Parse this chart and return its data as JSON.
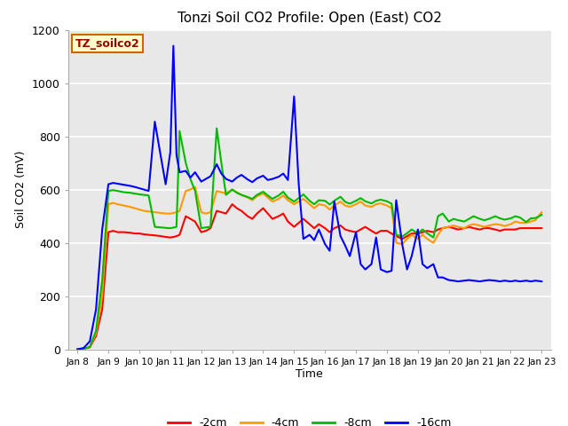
{
  "title": "Tonzi Soil CO2 Profile: Open (East) CO2",
  "xlabel": "Time",
  "ylabel": "Soil CO2 (mV)",
  "ylim": [
    0,
    1200
  ],
  "fig_bg": "#ffffff",
  "plot_bg": "#e8e8e8",
  "label_box_text": "TZ_soilco2",
  "label_box_color": "#ffffcc",
  "label_box_edge": "#cc6600",
  "label_box_text_color": "#990000",
  "x_labels": [
    "Jan 8",
    "Jan 9",
    "Jan 10",
    "Jan 11",
    "Jan 12",
    "Jan 13",
    "Jan 14",
    "Jan 15",
    "Jan 16",
    "Jan 17",
    "Jan 18",
    "Jan 19",
    "Jan 20",
    "Jan 21",
    "Jan 22",
    "Jan 23"
  ],
  "x_ticks": [
    0,
    1,
    2,
    3,
    4,
    5,
    6,
    7,
    8,
    9,
    10,
    11,
    12,
    13,
    14,
    15
  ],
  "series": {
    "-2cm": {
      "color": "#ff0000",
      "x": [
        0,
        0.2,
        0.4,
        0.6,
        0.8,
        1.0,
        1.15,
        1.3,
        1.5,
        1.7,
        1.85,
        2.0,
        2.15,
        2.3,
        2.5,
        2.7,
        2.85,
        3.0,
        3.1,
        3.2,
        3.3,
        3.5,
        3.65,
        3.8,
        4.0,
        4.15,
        4.3,
        4.5,
        4.65,
        4.8,
        5.0,
        5.15,
        5.3,
        5.5,
        5.65,
        5.8,
        6.0,
        6.15,
        6.3,
        6.5,
        6.65,
        6.8,
        7.0,
        7.15,
        7.3,
        7.5,
        7.65,
        7.8,
        8.0,
        8.15,
        8.3,
        8.5,
        8.65,
        8.8,
        9.0,
        9.15,
        9.3,
        9.5,
        9.65,
        9.8,
        10.0,
        10.15,
        10.3,
        10.5,
        10.65,
        10.8,
        11.0,
        11.15,
        11.3,
        11.5,
        11.65,
        11.8,
        12.0,
        12.15,
        12.3,
        12.5,
        12.65,
        12.8,
        13.0,
        13.15,
        13.3,
        13.5,
        13.65,
        13.8,
        14.0,
        14.15,
        14.3,
        14.5,
        14.65,
        14.8,
        15.0
      ],
      "y": [
        0,
        2,
        8,
        50,
        150,
        440,
        445,
        440,
        440,
        438,
        435,
        435,
        432,
        430,
        428,
        425,
        422,
        420,
        422,
        425,
        430,
        500,
        490,
        480,
        440,
        445,
        455,
        520,
        515,
        510,
        545,
        530,
        520,
        500,
        490,
        510,
        530,
        510,
        490,
        500,
        510,
        480,
        460,
        475,
        490,
        470,
        455,
        470,
        455,
        440,
        455,
        465,
        450,
        445,
        440,
        450,
        460,
        445,
        435,
        445,
        445,
        435,
        425,
        415,
        425,
        435,
        435,
        440,
        445,
        440,
        450,
        455,
        460,
        455,
        450,
        455,
        460,
        455,
        450,
        455,
        455,
        450,
        445,
        450,
        450,
        450,
        455,
        455,
        455,
        455,
        455
      ]
    },
    "-4cm": {
      "color": "#ff9900",
      "x": [
        0,
        0.2,
        0.4,
        0.6,
        0.8,
        1.0,
        1.15,
        1.3,
        1.5,
        1.7,
        1.85,
        2.0,
        2.15,
        2.3,
        2.5,
        2.7,
        2.85,
        3.0,
        3.1,
        3.2,
        3.3,
        3.5,
        3.65,
        3.8,
        4.0,
        4.15,
        4.3,
        4.5,
        4.65,
        4.8,
        5.0,
        5.15,
        5.3,
        5.5,
        5.65,
        5.8,
        6.0,
        6.15,
        6.3,
        6.5,
        6.65,
        6.8,
        7.0,
        7.15,
        7.3,
        7.5,
        7.65,
        7.8,
        8.0,
        8.15,
        8.3,
        8.5,
        8.65,
        8.8,
        9.0,
        9.15,
        9.3,
        9.5,
        9.65,
        9.8,
        10.0,
        10.15,
        10.3,
        10.5,
        10.65,
        10.8,
        11.0,
        11.15,
        11.3,
        11.5,
        11.65,
        11.8,
        12.0,
        12.15,
        12.3,
        12.5,
        12.65,
        12.8,
        13.0,
        13.15,
        13.3,
        13.5,
        13.65,
        13.8,
        14.0,
        14.15,
        14.3,
        14.5,
        14.65,
        14.8,
        15.0
      ],
      "y": [
        0,
        2,
        8,
        60,
        200,
        545,
        550,
        545,
        540,
        535,
        530,
        525,
        520,
        518,
        515,
        512,
        510,
        510,
        512,
        515,
        520,
        595,
        600,
        610,
        515,
        510,
        515,
        595,
        590,
        585,
        600,
        590,
        580,
        570,
        560,
        575,
        585,
        570,
        555,
        565,
        578,
        560,
        545,
        555,
        565,
        545,
        530,
        545,
        540,
        525,
        540,
        555,
        540,
        535,
        545,
        555,
        540,
        535,
        545,
        548,
        540,
        530,
        400,
        395,
        415,
        430,
        415,
        430,
        415,
        400,
        430,
        455,
        460,
        465,
        460,
        455,
        465,
        470,
        465,
        460,
        465,
        470,
        468,
        463,
        470,
        480,
        475,
        475,
        480,
        485,
        515
      ]
    },
    "-8cm": {
      "color": "#00bb00",
      "x": [
        0,
        0.2,
        0.4,
        0.6,
        0.8,
        1.0,
        1.15,
        1.3,
        1.5,
        1.7,
        1.85,
        2.0,
        2.15,
        2.3,
        2.5,
        2.7,
        2.85,
        3.0,
        3.1,
        3.2,
        3.3,
        3.5,
        3.65,
        3.8,
        4.0,
        4.15,
        4.3,
        4.5,
        4.65,
        4.8,
        5.0,
        5.15,
        5.3,
        5.5,
        5.65,
        5.8,
        6.0,
        6.15,
        6.3,
        6.5,
        6.65,
        6.8,
        7.0,
        7.15,
        7.3,
        7.5,
        7.65,
        7.8,
        8.0,
        8.15,
        8.3,
        8.5,
        8.65,
        8.8,
        9.0,
        9.15,
        9.3,
        9.5,
        9.65,
        9.8,
        10.0,
        10.15,
        10.3,
        10.5,
        10.65,
        10.8,
        11.0,
        11.15,
        11.3,
        11.5,
        11.65,
        11.8,
        12.0,
        12.15,
        12.3,
        12.5,
        12.65,
        12.8,
        13.0,
        13.15,
        13.3,
        13.5,
        13.65,
        13.8,
        14.0,
        14.15,
        14.3,
        14.5,
        14.65,
        14.8,
        15.0
      ],
      "y": [
        0,
        2,
        8,
        70,
        260,
        595,
        598,
        595,
        590,
        588,
        585,
        582,
        580,
        578,
        460,
        458,
        456,
        455,
        457,
        460,
        820,
        700,
        640,
        595,
        455,
        458,
        460,
        830,
        700,
        580,
        600,
        588,
        580,
        572,
        565,
        580,
        592,
        578,
        565,
        578,
        592,
        570,
        555,
        568,
        582,
        558,
        545,
        560,
        558,
        544,
        558,
        573,
        554,
        547,
        558,
        568,
        556,
        548,
        558,
        562,
        556,
        547,
        430,
        424,
        436,
        450,
        435,
        450,
        436,
        420,
        500,
        510,
        480,
        490,
        485,
        480,
        490,
        500,
        490,
        485,
        490,
        500,
        492,
        487,
        492,
        500,
        495,
        478,
        492,
        493,
        505
      ]
    },
    "-16cm": {
      "color": "#0000ff",
      "x": [
        0,
        0.2,
        0.4,
        0.6,
        0.8,
        1.0,
        1.15,
        1.3,
        1.5,
        1.7,
        1.85,
        2.0,
        2.15,
        2.3,
        2.5,
        2.7,
        2.85,
        3.0,
        3.1,
        3.2,
        3.3,
        3.5,
        3.65,
        3.8,
        4.0,
        4.15,
        4.3,
        4.5,
        4.65,
        4.8,
        5.0,
        5.15,
        5.3,
        5.5,
        5.65,
        5.8,
        6.0,
        6.15,
        6.3,
        6.5,
        6.65,
        6.8,
        7.0,
        7.15,
        7.3,
        7.5,
        7.65,
        7.8,
        8.0,
        8.15,
        8.3,
        8.5,
        8.65,
        8.8,
        9.0,
        9.15,
        9.3,
        9.5,
        9.65,
        9.8,
        10.0,
        10.15,
        10.3,
        10.5,
        10.65,
        10.8,
        11.0,
        11.15,
        11.3,
        11.5,
        11.65,
        11.8,
        12.0,
        12.15,
        12.3,
        12.5,
        12.65,
        12.8,
        13.0,
        13.15,
        13.3,
        13.5,
        13.65,
        13.8,
        14.0,
        14.15,
        14.3,
        14.5,
        14.65,
        14.8,
        15.0
      ],
      "y": [
        0,
        5,
        30,
        150,
        450,
        620,
        625,
        622,
        618,
        614,
        610,
        605,
        600,
        595,
        855,
        720,
        620,
        740,
        1140,
        730,
        665,
        670,
        645,
        665,
        630,
        640,
        650,
        695,
        660,
        640,
        630,
        645,
        655,
        638,
        628,
        642,
        652,
        636,
        640,
        648,
        660,
        636,
        950,
        620,
        415,
        430,
        410,
        450,
        395,
        370,
        555,
        425,
        390,
        350,
        440,
        320,
        300,
        320,
        420,
        300,
        290,
        295,
        560,
        390,
        300,
        350,
        450,
        320,
        305,
        320,
        270,
        270,
        260,
        258,
        255,
        258,
        260,
        258,
        255,
        258,
        260,
        258,
        255,
        258,
        255,
        258,
        255,
        258,
        255,
        258,
        255
      ]
    }
  },
  "legend": [
    {
      "label": "-2cm",
      "color": "#ff0000"
    },
    {
      "label": "-4cm",
      "color": "#ff9900"
    },
    {
      "label": "-8cm",
      "color": "#00bb00"
    },
    {
      "label": "-16cm",
      "color": "#0000ff"
    }
  ]
}
